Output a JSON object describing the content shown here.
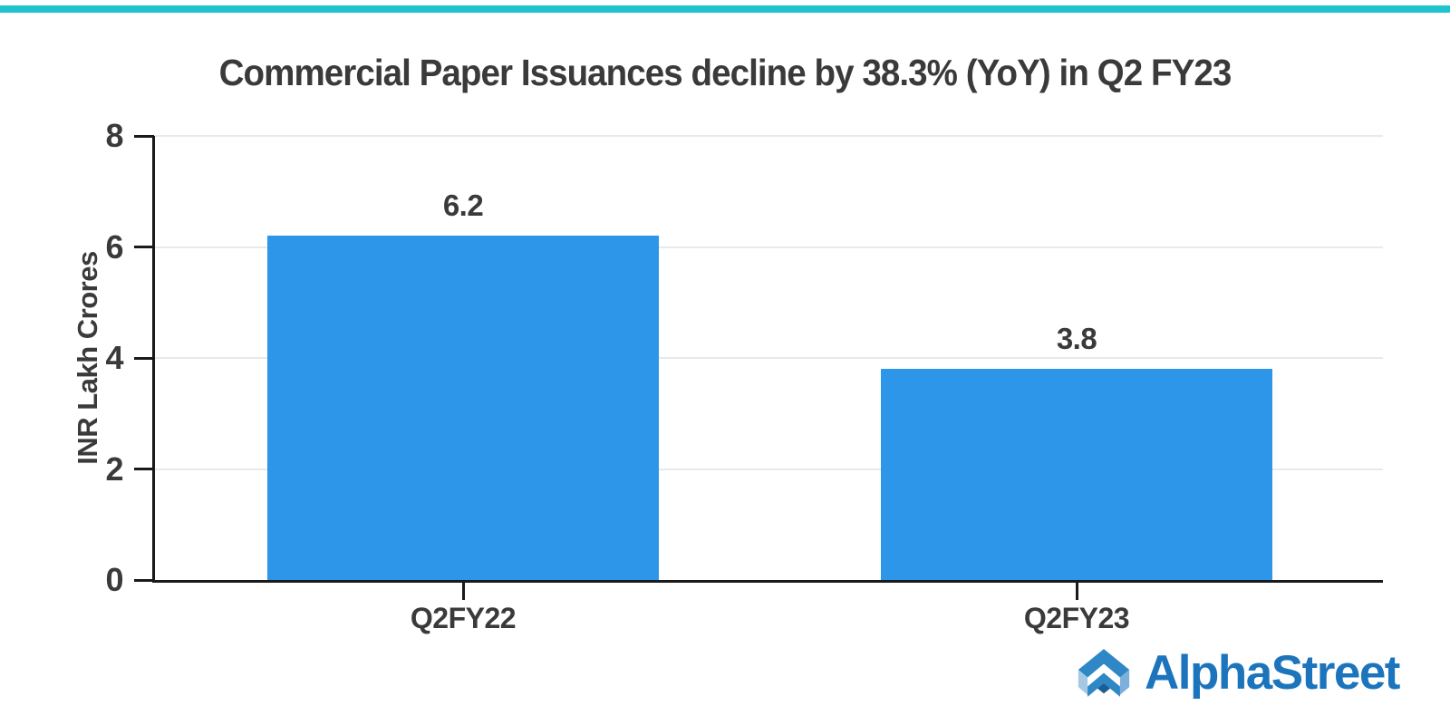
{
  "page": {
    "background": "#FFFFFF",
    "top_accent_bar_color": "#1FC3CD"
  },
  "chart_data": {
    "type": "bar",
    "title": "Commercial Paper Issuances decline by 38.3% (YoY) in Q2 FY23",
    "categories": [
      "Q2FY22",
      "Q2FY23"
    ],
    "values": [
      6.2,
      3.8
    ],
    "value_labels": [
      "6.2",
      "3.8"
    ],
    "xlabel": "",
    "ylabel": "INR Lakh Crores",
    "ylim": [
      0,
      8
    ],
    "yticks": [
      0,
      2,
      4,
      6,
      8
    ],
    "grid": true,
    "legend": "none",
    "colors": {
      "bar": "#2E96E9",
      "text": "#3A3A3A",
      "axis": "#1A1A1A",
      "gridline": "#E9E9E9"
    }
  },
  "branding": {
    "logo_text": "AlphaStreet",
    "logo_text_color": "#1C75BC",
    "logo_icon": "alphastreet-chevron-icon",
    "logo_icon_colors": {
      "primary": "#2F87C6",
      "facet_left": "#A5C9E5",
      "facet_right": "#7DB1DC",
      "notch": "#1A5E94"
    }
  }
}
